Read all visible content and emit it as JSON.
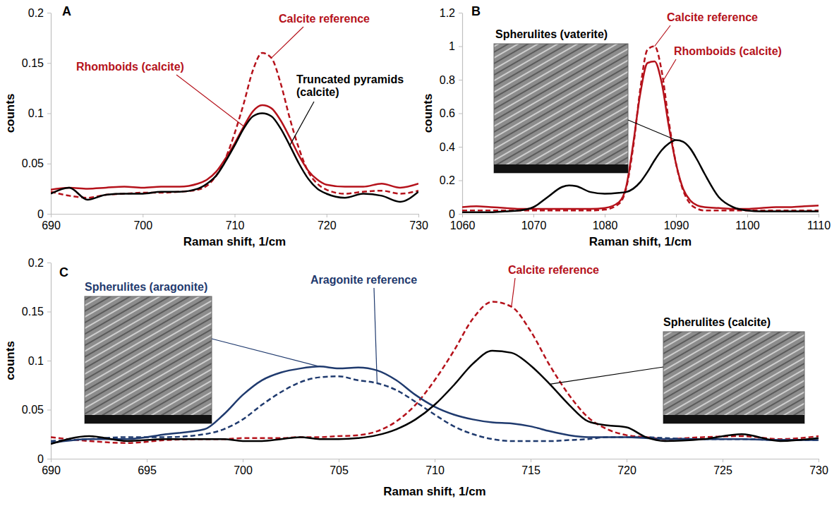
{
  "chart_data": [
    {
      "type": "line",
      "title": "A",
      "x_label": "Raman shift, 1/cm",
      "y_label": "counts",
      "xlim": [
        690,
        730
      ],
      "xticks": [
        690,
        700,
        710,
        720,
        730
      ],
      "ylim": [
        0,
        0.2
      ],
      "yticks": [
        0,
        0.05,
        0.1,
        0.15,
        0.2
      ],
      "x": [
        690,
        692,
        694,
        696,
        698,
        700,
        702,
        704,
        706,
        707,
        708,
        709,
        710,
        711,
        712,
        713,
        714,
        715,
        716,
        717,
        718,
        719,
        720,
        722,
        724,
        726,
        728,
        730
      ],
      "series": [
        {
          "name": "Calcite reference",
          "color": "#b5121b",
          "line_style": "dashed",
          "values": [
            0.022,
            0.018,
            0.016,
            0.019,
            0.02,
            0.021,
            0.021,
            0.022,
            0.024,
            0.028,
            0.038,
            0.055,
            0.08,
            0.11,
            0.143,
            0.16,
            0.155,
            0.13,
            0.095,
            0.065,
            0.042,
            0.03,
            0.024,
            0.02,
            0.022,
            0.023,
            0.02,
            0.023
          ]
        },
        {
          "name": "Rhomboids (calcite)",
          "color": "#b5121b",
          "line_style": "solid",
          "values": [
            0.024,
            0.026,
            0.025,
            0.026,
            0.027,
            0.026,
            0.027,
            0.027,
            0.03,
            0.034,
            0.042,
            0.055,
            0.07,
            0.087,
            0.102,
            0.108,
            0.105,
            0.093,
            0.076,
            0.058,
            0.043,
            0.034,
            0.029,
            0.027,
            0.027,
            0.03,
            0.026,
            0.03
          ]
        },
        {
          "name": "Truncated pyramids (calcite)",
          "color": "#000000",
          "line_style": "solid",
          "values": [
            0.02,
            0.026,
            0.014,
            0.019,
            0.02,
            0.02,
            0.022,
            0.022,
            0.025,
            0.03,
            0.038,
            0.052,
            0.068,
            0.085,
            0.097,
            0.1,
            0.097,
            0.085,
            0.068,
            0.05,
            0.035,
            0.025,
            0.02,
            0.016,
            0.02,
            0.018,
            0.012,
            0.022
          ]
        }
      ]
    },
    {
      "type": "line",
      "title": "B",
      "x_label": "Raman shift, 1/cm",
      "y_label": "counts",
      "xlim": [
        1060,
        1110
      ],
      "xticks": [
        1060,
        1070,
        1080,
        1090,
        1100,
        1110
      ],
      "ylim": [
        0,
        1.2
      ],
      "yticks": [
        0,
        0.2,
        0.4,
        0.6,
        0.8,
        1,
        1.2
      ],
      "x": [
        1060,
        1062,
        1064,
        1066,
        1068,
        1070,
        1072,
        1074,
        1075,
        1076,
        1078,
        1080,
        1082,
        1083,
        1084,
        1085,
        1086,
        1087,
        1088,
        1089,
        1090,
        1091,
        1092,
        1093,
        1094,
        1096,
        1098,
        1100,
        1102,
        1104,
        1106,
        1108,
        1110
      ],
      "series": [
        {
          "name": "Calcite reference",
          "color": "#b5121b",
          "line_style": "dashed",
          "values": [
            0.02,
            0.02,
            0.02,
            0.02,
            0.02,
            0.02,
            0.02,
            0.02,
            0.02,
            0.02,
            0.02,
            0.025,
            0.06,
            0.15,
            0.4,
            0.75,
            0.98,
            1.0,
            0.85,
            0.55,
            0.3,
            0.14,
            0.06,
            0.03,
            0.02,
            0.02,
            0.02,
            0.02,
            0.02,
            0.02,
            0.02,
            0.02,
            0.02
          ]
        },
        {
          "name": "Rhomboids (calcite)",
          "color": "#b5121b",
          "line_style": "solid",
          "values": [
            0.04,
            0.045,
            0.04,
            0.035,
            0.03,
            0.03,
            0.03,
            0.03,
            0.03,
            0.03,
            0.03,
            0.035,
            0.07,
            0.16,
            0.42,
            0.72,
            0.9,
            0.91,
            0.78,
            0.52,
            0.3,
            0.15,
            0.08,
            0.05,
            0.04,
            0.035,
            0.03,
            0.03,
            0.035,
            0.04,
            0.04,
            0.045,
            0.05
          ]
        },
        {
          "name": "Spherulites (vaterite)",
          "color": "#000000",
          "line_style": "solid",
          "values": [
            0.01,
            0.01,
            0.01,
            0.015,
            0.02,
            0.04,
            0.1,
            0.16,
            0.17,
            0.165,
            0.13,
            0.12,
            0.125,
            0.13,
            0.15,
            0.19,
            0.25,
            0.32,
            0.38,
            0.42,
            0.44,
            0.43,
            0.39,
            0.32,
            0.24,
            0.1,
            0.04,
            0.02,
            0.015,
            0.015,
            0.015,
            0.015,
            0.015
          ]
        }
      ]
    },
    {
      "type": "line",
      "title": "C",
      "x_label": "Raman shift, 1/cm",
      "y_label": "counts",
      "xlim": [
        690,
        730
      ],
      "xticks": [
        690,
        695,
        700,
        705,
        710,
        715,
        720,
        725,
        730
      ],
      "ylim": [
        0,
        0.2
      ],
      "yticks": [
        0,
        0.05,
        0.1,
        0.15,
        0.2
      ],
      "x": [
        690,
        692,
        694,
        696,
        698,
        699,
        700,
        701,
        702,
        703,
        704,
        705,
        706,
        707,
        708,
        709,
        710,
        711,
        712,
        713,
        714,
        715,
        716,
        717,
        718,
        719,
        720,
        721,
        722,
        724,
        726,
        728,
        730
      ],
      "series": [
        {
          "name": "Calcite reference",
          "color": "#b5121b",
          "line_style": "dashed",
          "values": [
            0.022,
            0.018,
            0.016,
            0.019,
            0.02,
            0.02,
            0.021,
            0.021,
            0.021,
            0.022,
            0.022,
            0.023,
            0.024,
            0.028,
            0.038,
            0.055,
            0.08,
            0.11,
            0.143,
            0.16,
            0.155,
            0.13,
            0.095,
            0.065,
            0.042,
            0.03,
            0.024,
            0.022,
            0.02,
            0.022,
            0.023,
            0.02,
            0.023
          ]
        },
        {
          "name": "Aragonite reference",
          "color": "#1f3a6e",
          "line_style": "dashed",
          "values": [
            0.018,
            0.02,
            0.022,
            0.022,
            0.025,
            0.03,
            0.04,
            0.055,
            0.068,
            0.078,
            0.083,
            0.084,
            0.08,
            0.077,
            0.07,
            0.058,
            0.045,
            0.033,
            0.025,
            0.02,
            0.018,
            0.018,
            0.018,
            0.019,
            0.02,
            0.022,
            0.022,
            0.022,
            0.021,
            0.02,
            0.02,
            0.019,
            0.019
          ]
        },
        {
          "name": "Spherulites (aragonite)",
          "color": "#1f3a6e",
          "line_style": "solid",
          "values": [
            0.016,
            0.02,
            0.02,
            0.025,
            0.03,
            0.045,
            0.065,
            0.08,
            0.088,
            0.092,
            0.094,
            0.092,
            0.093,
            0.09,
            0.08,
            0.065,
            0.053,
            0.045,
            0.04,
            0.037,
            0.036,
            0.033,
            0.028,
            0.024,
            0.022,
            0.022,
            0.022,
            0.021,
            0.02,
            0.02,
            0.02,
            0.019,
            0.019
          ]
        },
        {
          "name": "Spherulites (calcite)",
          "color": "#000000",
          "line_style": "solid",
          "values": [
            0.015,
            0.023,
            0.018,
            0.02,
            0.02,
            0.02,
            0.018,
            0.018,
            0.02,
            0.022,
            0.02,
            0.02,
            0.021,
            0.024,
            0.03,
            0.04,
            0.055,
            0.075,
            0.097,
            0.11,
            0.108,
            0.095,
            0.076,
            0.055,
            0.038,
            0.034,
            0.032,
            0.022,
            0.018,
            0.02,
            0.025,
            0.018,
            0.021
          ]
        }
      ]
    }
  ]
}
